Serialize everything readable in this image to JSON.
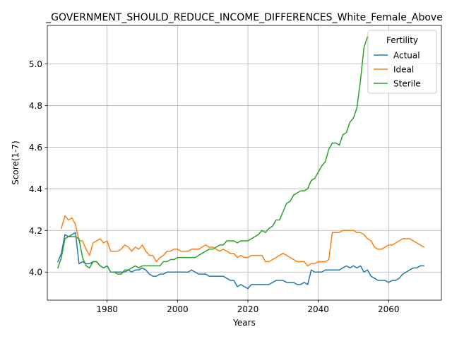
{
  "chart_data": {
    "type": "line",
    "title": "_GOVERNMENT_SHOULD_REDUCE_INCOME_DIFFERENCES_White_Female_Above",
    "xlabel": "Years",
    "ylabel": "Score(1-7)",
    "xlim": [
      1963,
      2075
    ],
    "ylim": [
      3.865,
      5.185
    ],
    "xticks": [
      1980,
      2000,
      2020,
      2040,
      2060
    ],
    "yticks": [
      4.0,
      4.2,
      4.4,
      4.6,
      4.8,
      5.0
    ],
    "ytick_labels": [
      "4.0",
      "4.2",
      "4.4",
      "4.6",
      "4.8",
      "5.0"
    ],
    "grid": true,
    "legend": {
      "title": "Fertility",
      "position": "top-right"
    },
    "series": [
      {
        "name": "Actual",
        "color": "#1f77b4",
        "points": [
          [
            1966,
            4.05
          ],
          [
            1967,
            4.09
          ],
          [
            1968,
            4.18
          ],
          [
            1969,
            4.17
          ],
          [
            1970,
            4.18
          ],
          [
            1971,
            4.19
          ],
          [
            1972,
            4.04
          ],
          [
            1973,
            4.05
          ],
          [
            1974,
            4.04
          ],
          [
            1975,
            4.04
          ],
          [
            1976,
            4.05
          ],
          [
            1977,
            4.05
          ],
          [
            1978,
            4.03
          ],
          [
            1979,
            4.02
          ],
          [
            1980,
            4.03
          ],
          [
            1981,
            4.0
          ],
          [
            1982,
            4.0
          ],
          [
            1983,
            4.0
          ],
          [
            1984,
            4.0
          ],
          [
            1985,
            4.0
          ],
          [
            1986,
            4.01
          ],
          [
            1987,
            4.0
          ],
          [
            1988,
            4.01
          ],
          [
            1989,
            4.01
          ],
          [
            1990,
            4.02
          ],
          [
            1991,
            4.01
          ],
          [
            1992,
            3.99
          ],
          [
            1993,
            3.98
          ],
          [
            1994,
            3.98
          ],
          [
            1995,
            3.99
          ],
          [
            1996,
            3.99
          ],
          [
            1997,
            4.0
          ],
          [
            1998,
            4.0
          ],
          [
            1999,
            4.0
          ],
          [
            2000,
            4.0
          ],
          [
            2001,
            4.0
          ],
          [
            2002,
            4.0
          ],
          [
            2003,
            4.0
          ],
          [
            2004,
            4.01
          ],
          [
            2005,
            4.0
          ],
          [
            2006,
            3.99
          ],
          [
            2007,
            3.99
          ],
          [
            2008,
            3.99
          ],
          [
            2009,
            3.98
          ],
          [
            2010,
            3.98
          ],
          [
            2011,
            3.98
          ],
          [
            2012,
            3.98
          ],
          [
            2013,
            3.98
          ],
          [
            2014,
            3.97
          ],
          [
            2015,
            3.96
          ],
          [
            2016,
            3.96
          ],
          [
            2017,
            3.93
          ],
          [
            2018,
            3.94
          ],
          [
            2019,
            3.93
          ],
          [
            2020,
            3.92
          ],
          [
            2021,
            3.94
          ],
          [
            2022,
            3.94
          ],
          [
            2023,
            3.94
          ],
          [
            2024,
            3.94
          ],
          [
            2025,
            3.94
          ],
          [
            2026,
            3.94
          ],
          [
            2027,
            3.95
          ],
          [
            2028,
            3.96
          ],
          [
            2029,
            3.96
          ],
          [
            2030,
            3.96
          ],
          [
            2031,
            3.95
          ],
          [
            2032,
            3.95
          ],
          [
            2033,
            3.95
          ],
          [
            2034,
            3.94
          ],
          [
            2035,
            3.94
          ],
          [
            2036,
            3.95
          ],
          [
            2037,
            3.94
          ],
          [
            2038,
            4.01
          ],
          [
            2039,
            4.0
          ],
          [
            2040,
            4.0
          ],
          [
            2041,
            4.0
          ],
          [
            2042,
            4.01
          ],
          [
            2043,
            4.01
          ],
          [
            2044,
            4.01
          ],
          [
            2045,
            4.01
          ],
          [
            2046,
            4.01
          ],
          [
            2047,
            4.02
          ],
          [
            2048,
            4.03
          ],
          [
            2049,
            4.02
          ],
          [
            2050,
            4.03
          ],
          [
            2051,
            4.02
          ],
          [
            2052,
            4.03
          ],
          [
            2053,
            4.0
          ],
          [
            2054,
            4.01
          ],
          [
            2055,
            3.98
          ],
          [
            2056,
            3.97
          ],
          [
            2057,
            3.96
          ],
          [
            2058,
            3.96
          ],
          [
            2059,
            3.96
          ],
          [
            2060,
            3.95
          ],
          [
            2061,
            3.96
          ],
          [
            2062,
            3.96
          ],
          [
            2063,
            3.97
          ],
          [
            2064,
            3.99
          ],
          [
            2065,
            4.0
          ],
          [
            2066,
            4.01
          ],
          [
            2067,
            4.02
          ],
          [
            2068,
            4.02
          ],
          [
            2069,
            4.03
          ],
          [
            2070,
            4.03
          ]
        ]
      },
      {
        "name": "Ideal",
        "color": "#ff7f0e",
        "points": [
          [
            1967,
            4.21
          ],
          [
            1968,
            4.27
          ],
          [
            1969,
            4.25
          ],
          [
            1970,
            4.26
          ],
          [
            1971,
            4.23
          ],
          [
            1972,
            4.15
          ],
          [
            1973,
            4.15
          ],
          [
            1974,
            4.11
          ],
          [
            1975,
            4.08
          ],
          [
            1976,
            4.14
          ],
          [
            1977,
            4.15
          ],
          [
            1978,
            4.16
          ],
          [
            1979,
            4.14
          ],
          [
            1980,
            4.15
          ],
          [
            1981,
            4.1
          ],
          [
            1982,
            4.1
          ],
          [
            1983,
            4.1
          ],
          [
            1984,
            4.11
          ],
          [
            1985,
            4.13
          ],
          [
            1986,
            4.12
          ],
          [
            1987,
            4.1
          ],
          [
            1988,
            4.12
          ],
          [
            1989,
            4.11
          ],
          [
            1990,
            4.13
          ],
          [
            1991,
            4.1
          ],
          [
            1992,
            4.08
          ],
          [
            1993,
            4.08
          ],
          [
            1994,
            4.05
          ],
          [
            1995,
            4.07
          ],
          [
            1996,
            4.08
          ],
          [
            1997,
            4.1
          ],
          [
            1998,
            4.1
          ],
          [
            1999,
            4.11
          ],
          [
            2000,
            4.11
          ],
          [
            2001,
            4.1
          ],
          [
            2002,
            4.1
          ],
          [
            2003,
            4.1
          ],
          [
            2004,
            4.11
          ],
          [
            2005,
            4.11
          ],
          [
            2006,
            4.11
          ],
          [
            2007,
            4.12
          ],
          [
            2008,
            4.13
          ],
          [
            2009,
            4.12
          ],
          [
            2010,
            4.12
          ],
          [
            2011,
            4.11
          ],
          [
            2012,
            4.1
          ],
          [
            2013,
            4.11
          ],
          [
            2014,
            4.1
          ],
          [
            2015,
            4.09
          ],
          [
            2016,
            4.09
          ],
          [
            2017,
            4.07
          ],
          [
            2018,
            4.08
          ],
          [
            2019,
            4.07
          ],
          [
            2020,
            4.07
          ],
          [
            2021,
            4.08
          ],
          [
            2022,
            4.08
          ],
          [
            2023,
            4.08
          ],
          [
            2024,
            4.08
          ],
          [
            2025,
            4.05
          ],
          [
            2026,
            4.05
          ],
          [
            2027,
            4.06
          ],
          [
            2028,
            4.07
          ],
          [
            2029,
            4.08
          ],
          [
            2030,
            4.09
          ],
          [
            2031,
            4.08
          ],
          [
            2032,
            4.07
          ],
          [
            2033,
            4.06
          ],
          [
            2034,
            4.05
          ],
          [
            2035,
            4.05
          ],
          [
            2036,
            4.05
          ],
          [
            2037,
            4.03
          ],
          [
            2038,
            4.04
          ],
          [
            2039,
            4.04
          ],
          [
            2040,
            4.05
          ],
          [
            2041,
            4.05
          ],
          [
            2042,
            4.05
          ],
          [
            2043,
            4.06
          ],
          [
            2044,
            4.19
          ],
          [
            2045,
            4.19
          ],
          [
            2046,
            4.19
          ],
          [
            2047,
            4.2
          ],
          [
            2048,
            4.2
          ],
          [
            2049,
            4.2
          ],
          [
            2050,
            4.2
          ],
          [
            2051,
            4.19
          ],
          [
            2052,
            4.19
          ],
          [
            2053,
            4.18
          ],
          [
            2054,
            4.16
          ],
          [
            2055,
            4.15
          ],
          [
            2056,
            4.12
          ],
          [
            2057,
            4.11
          ],
          [
            2058,
            4.11
          ],
          [
            2059,
            4.12
          ],
          [
            2060,
            4.13
          ],
          [
            2061,
            4.13
          ],
          [
            2062,
            4.14
          ],
          [
            2063,
            4.15
          ],
          [
            2064,
            4.16
          ],
          [
            2065,
            4.16
          ],
          [
            2066,
            4.16
          ],
          [
            2067,
            4.15
          ],
          [
            2068,
            4.14
          ],
          [
            2069,
            4.13
          ],
          [
            2070,
            4.12
          ]
        ]
      },
      {
        "name": "Sterile",
        "color": "#2ca02c",
        "points": [
          [
            1966,
            4.02
          ],
          [
            1967,
            4.07
          ],
          [
            1968,
            4.16
          ],
          [
            1969,
            4.17
          ],
          [
            1970,
            4.17
          ],
          [
            1971,
            4.17
          ],
          [
            1972,
            4.16
          ],
          [
            1973,
            4.07
          ],
          [
            1974,
            4.03
          ],
          [
            1975,
            4.02
          ],
          [
            1976,
            4.05
          ],
          [
            1977,
            4.05
          ],
          [
            1978,
            4.03
          ],
          [
            1979,
            4.02
          ],
          [
            1980,
            4.03
          ],
          [
            1981,
            4.0
          ],
          [
            1982,
            4.0
          ],
          [
            1983,
            3.99
          ],
          [
            1984,
            3.99
          ],
          [
            1985,
            4.01
          ],
          [
            1986,
            4.01
          ],
          [
            1987,
            4.02
          ],
          [
            1988,
            4.03
          ],
          [
            1989,
            4.02
          ],
          [
            1990,
            4.03
          ],
          [
            1991,
            4.03
          ],
          [
            1992,
            4.03
          ],
          [
            1993,
            4.03
          ],
          [
            1994,
            4.03
          ],
          [
            1995,
            4.03
          ],
          [
            1996,
            4.05
          ],
          [
            1997,
            4.05
          ],
          [
            1998,
            4.06
          ],
          [
            1999,
            4.06
          ],
          [
            2000,
            4.07
          ],
          [
            2001,
            4.07
          ],
          [
            2002,
            4.07
          ],
          [
            2003,
            4.07
          ],
          [
            2004,
            4.07
          ],
          [
            2005,
            4.07
          ],
          [
            2006,
            4.08
          ],
          [
            2007,
            4.09
          ],
          [
            2008,
            4.1
          ],
          [
            2009,
            4.11
          ],
          [
            2010,
            4.11
          ],
          [
            2011,
            4.12
          ],
          [
            2012,
            4.13
          ],
          [
            2013,
            4.13
          ],
          [
            2014,
            4.15
          ],
          [
            2015,
            4.15
          ],
          [
            2016,
            4.15
          ],
          [
            2017,
            4.14
          ],
          [
            2018,
            4.15
          ],
          [
            2019,
            4.15
          ],
          [
            2020,
            4.15
          ],
          [
            2021,
            4.16
          ],
          [
            2022,
            4.17
          ],
          [
            2023,
            4.18
          ],
          [
            2024,
            4.2
          ],
          [
            2025,
            4.19
          ],
          [
            2026,
            4.21
          ],
          [
            2027,
            4.22
          ],
          [
            2028,
            4.25
          ],
          [
            2029,
            4.25
          ],
          [
            2030,
            4.29
          ],
          [
            2031,
            4.33
          ],
          [
            2032,
            4.34
          ],
          [
            2033,
            4.37
          ],
          [
            2034,
            4.38
          ],
          [
            2035,
            4.39
          ],
          [
            2036,
            4.39
          ],
          [
            2037,
            4.4
          ],
          [
            2038,
            4.44
          ],
          [
            2039,
            4.45
          ],
          [
            2040,
            4.48
          ],
          [
            2041,
            4.51
          ],
          [
            2042,
            4.53
          ],
          [
            2043,
            4.59
          ],
          [
            2044,
            4.62
          ],
          [
            2045,
            4.62
          ],
          [
            2046,
            4.61
          ],
          [
            2047,
            4.66
          ],
          [
            2048,
            4.67
          ],
          [
            2049,
            4.72
          ],
          [
            2050,
            4.74
          ],
          [
            2051,
            4.79
          ],
          [
            2052,
            4.92
          ],
          [
            2053,
            5.08
          ],
          [
            2054,
            5.13
          ]
        ]
      }
    ]
  }
}
